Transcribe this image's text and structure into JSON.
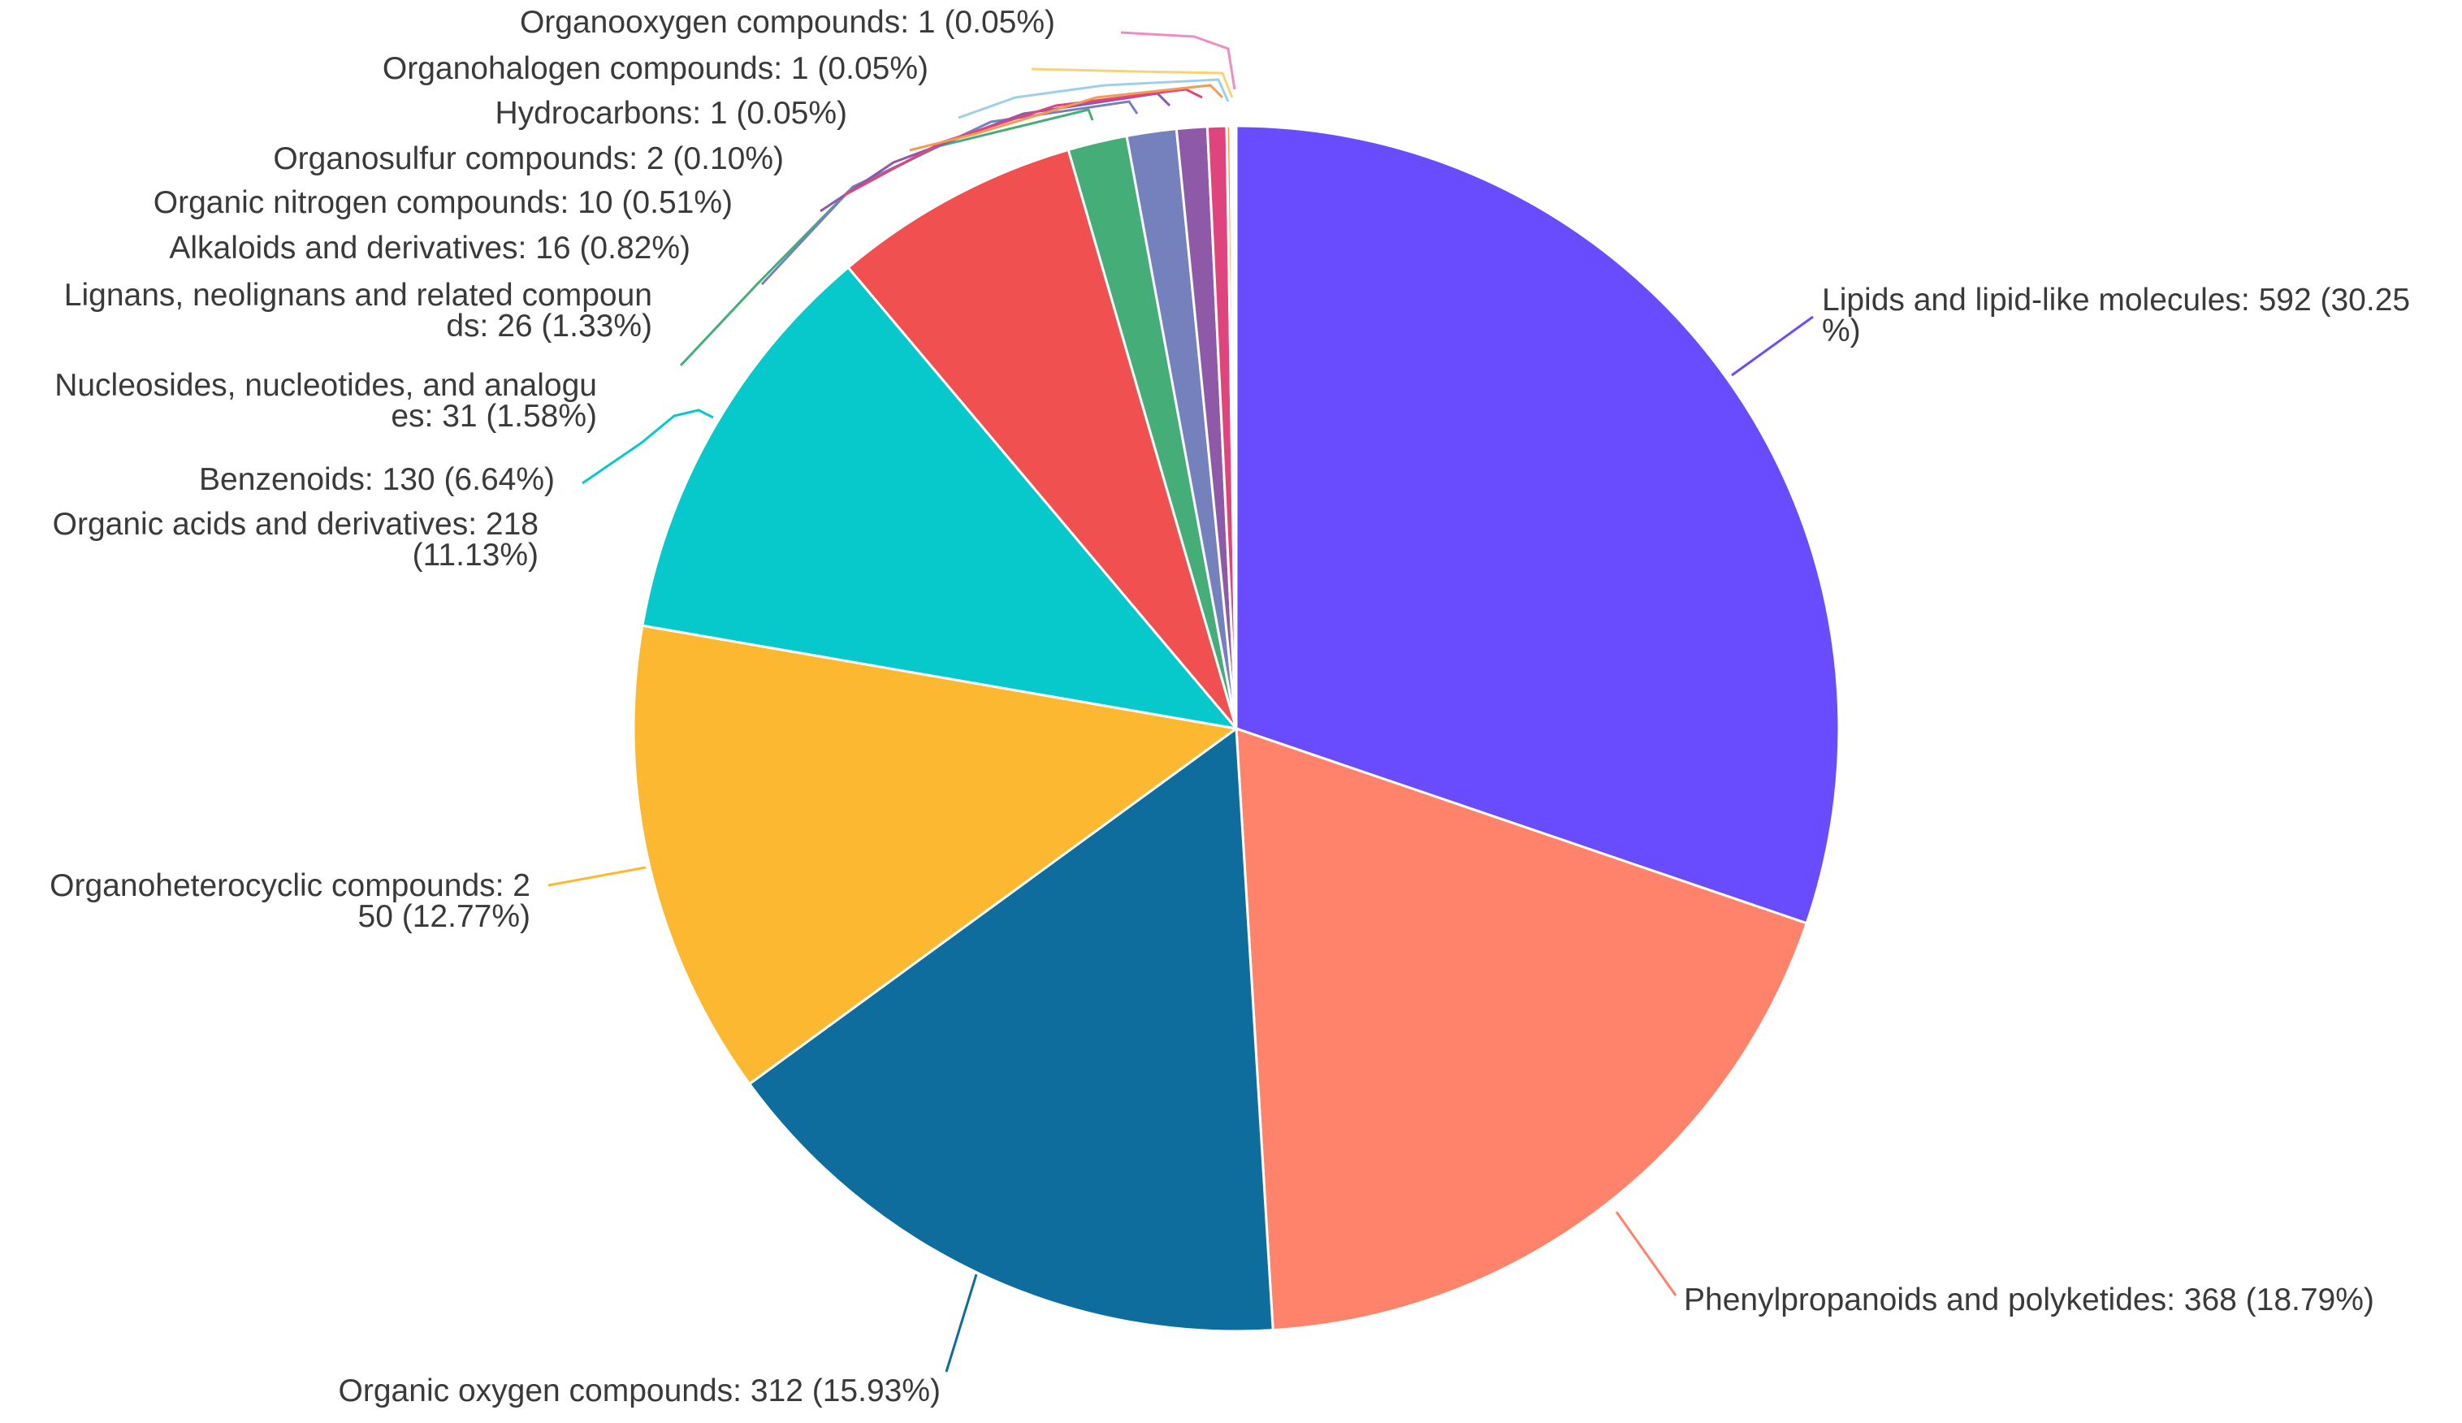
{
  "chart_data": {
    "type": "pie",
    "start_angle": "top",
    "direction": "clockwise",
    "slices": [
      {
        "label_lines": [
          "Lipids and lipid-like molecules: 592 (30.25",
          "%)"
        ],
        "category": "Lipids and lipid-like molecules",
        "value": 592,
        "percent": 30.25,
        "color": "#6a4cff"
      },
      {
        "label_lines": [
          "Phenylpropanoids and polyketides: 368 (18.79%)"
        ],
        "category": "Phenylpropanoids and polyketides",
        "value": 368,
        "percent": 18.79,
        "color": "#ff826b"
      },
      {
        "label_lines": [
          "Organic oxygen compounds: 312 (15.93%)"
        ],
        "category": "Organic oxygen compounds",
        "value": 312,
        "percent": 15.93,
        "color": "#0e6d9c"
      },
      {
        "label_lines": [
          "Organoheterocyclic compounds: 2",
          "50 (12.77%)"
        ],
        "category": "Organoheterocyclic compounds",
        "value": 250,
        "percent": 12.77,
        "color": "#fcb830"
      },
      {
        "label_lines": [
          "Organic acids and derivatives: 218",
          "(11.13%)"
        ],
        "category": "Organic acids and derivatives",
        "value": 218,
        "percent": 11.13,
        "color": "#07c9cc"
      },
      {
        "label_lines": [
          "Benzenoids: 130 (6.64%)"
        ],
        "category": "Benzenoids",
        "value": 130,
        "percent": 6.64,
        "color": "#f15050"
      },
      {
        "label_lines": [
          "Nucleosides, nucleotides, and analogu",
          "es: 31 (1.58%)"
        ],
        "category": "Nucleosides, nucleotides, and analogues",
        "value": 31,
        "percent": 1.58,
        "color": "#44ad78"
      },
      {
        "label_lines": [
          "Lignans, neolignans and related compoun",
          "ds: 26 (1.33%)"
        ],
        "category": "Lignans, neolignans and related compounds",
        "value": 26,
        "percent": 1.33,
        "color": "#7581bc"
      },
      {
        "label_lines": [
          "Alkaloids and derivatives: 16 (0.82%)"
        ],
        "category": "Alkaloids and derivatives",
        "value": 16,
        "percent": 0.82,
        "color": "#8e5aa8"
      },
      {
        "label_lines": [
          "Organic nitrogen compounds: 10 (0.51%)"
        ],
        "category": "Organic nitrogen compounds",
        "value": 10,
        "percent": 0.51,
        "color": "#e0447c"
      },
      {
        "label_lines": [
          "Organosulfur compounds: 2 (0.10%)"
        ],
        "category": "Organosulfur compounds",
        "value": 2,
        "percent": 0.1,
        "color": "#f39a53"
      },
      {
        "label_lines": [
          "Hydrocarbons: 1 (0.05%)"
        ],
        "category": "Hydrocarbons",
        "value": 1,
        "percent": 0.05,
        "color": "#9fcfe8"
      },
      {
        "label_lines": [
          "Organohalogen compounds: 1 (0.05%)"
        ],
        "category": "Organohalogen compounds",
        "value": 1,
        "percent": 0.05,
        "color": "#f7d27a"
      },
      {
        "label_lines": [
          "Organooxygen compounds: 1 (0.05%)"
        ],
        "category": "Organooxygen compounds",
        "value": 1,
        "percent": 0.05,
        "color": "#f08cc0"
      }
    ]
  }
}
